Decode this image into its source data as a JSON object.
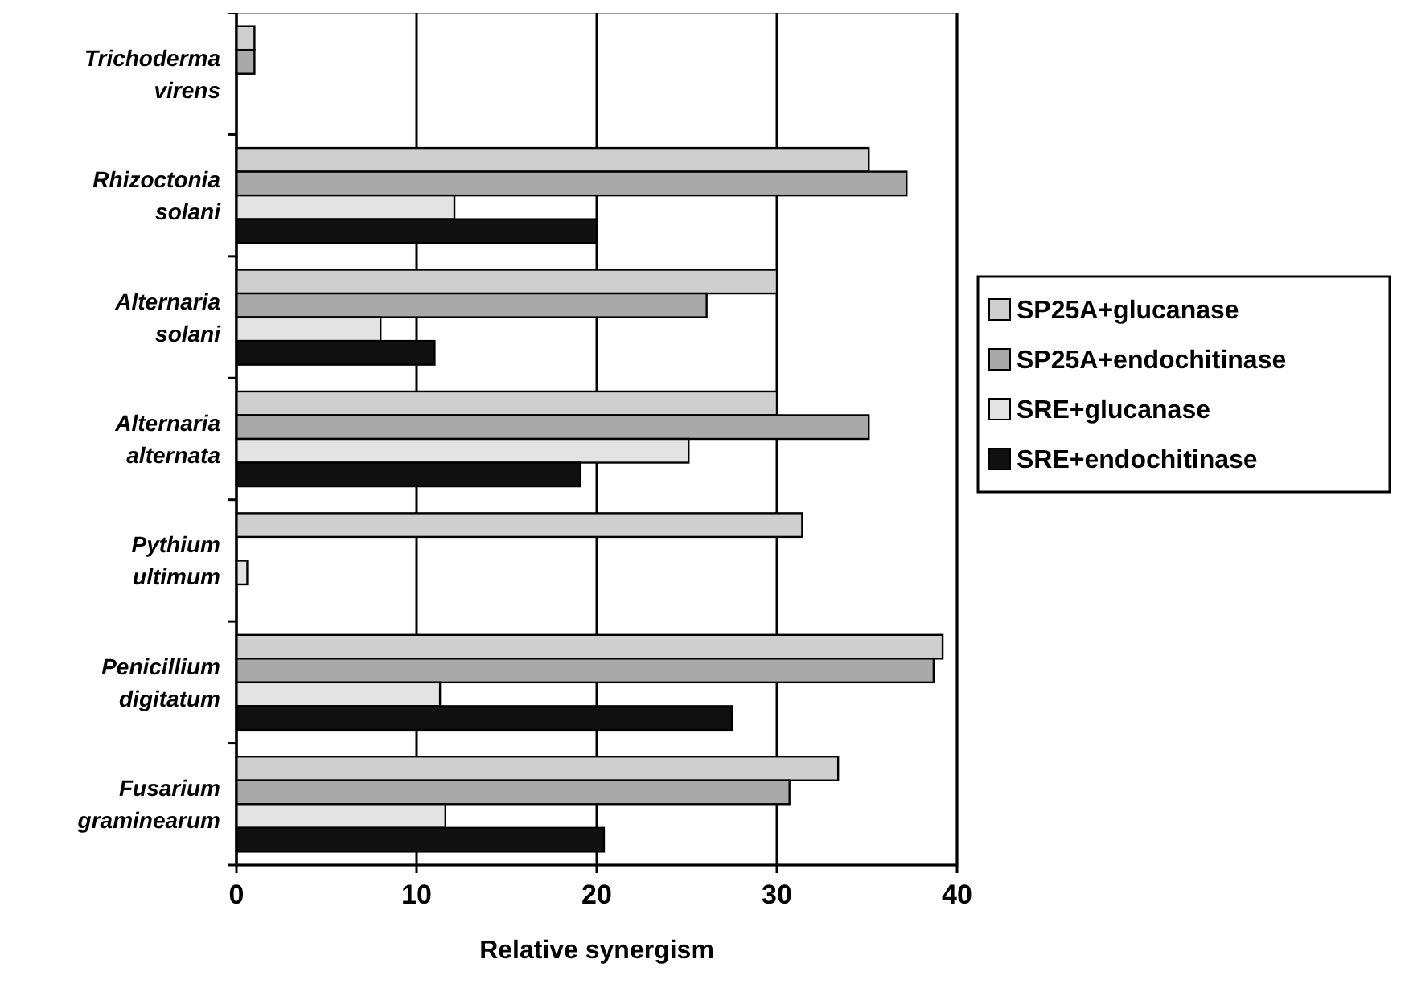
{
  "chart_data": {
    "type": "bar",
    "orientation": "horizontal",
    "xlabel": "Relative synergism",
    "categories": [
      "Trichoderma virens",
      "Rhizoctonia solani",
      "Alternaria solani",
      "Alternaria alternata",
      "Pythium ultimum",
      "Penicillium digitatum",
      "Fusarium graminearum"
    ],
    "series": [
      {
        "name": "SP25A+glucanase",
        "color": "#cfcfcf",
        "values": [
          1.0,
          35.1,
          30,
          30,
          31.4,
          39.2,
          33.4
        ]
      },
      {
        "name": "SP25A+endochitinase",
        "color": "#a9a9a9",
        "values": [
          1.0,
          37.2,
          26.1,
          35.1,
          0,
          38.7,
          30.7
        ]
      },
      {
        "name": "SRE+glucanase",
        "color": "#e3e3e3",
        "values": [
          0,
          12.1,
          8,
          25.1,
          0.6,
          11.3,
          11.6
        ]
      },
      {
        "name": "SRE+endochitinase",
        "color": "#111111",
        "values": [
          0,
          20,
          11,
          19.1,
          null,
          27.5,
          20.4
        ]
      }
    ],
    "xlim": [
      0,
      40
    ],
    "xticks": [
      0,
      10,
      20,
      30,
      40
    ],
    "grid": "x",
    "legend": "right"
  }
}
